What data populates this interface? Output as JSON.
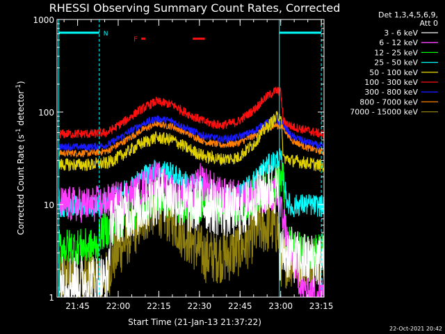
{
  "chart_data": {
    "type": "line",
    "title": "RHESSI Observing Summary Count Rates, Corrected",
    "xlabel": "Start Time (21-Jan-13 21:37:22)",
    "ylabel_parts": [
      "Corrected Count Rate (s",
      "-1",
      " detector",
      "-1",
      ")"
    ],
    "y_scale": "log",
    "ylim": [
      1,
      1000
    ],
    "xlim": [
      37.4,
      136.0
    ],
    "x_units": "minutes after 21:00 UT on 21-Jan-13",
    "x_ticks": [
      {
        "x": 45,
        "label": "21:45"
      },
      {
        "x": 60,
        "label": "22:00"
      },
      {
        "x": 75,
        "label": "22:15"
      },
      {
        "x": 90,
        "label": "22:30"
      },
      {
        "x": 105,
        "label": "22:45"
      },
      {
        "x": 120,
        "label": "23:00"
      },
      {
        "x": 135,
        "label": "23:15"
      }
    ],
    "y_ticks": [
      {
        "y": 1,
        "label": "1"
      },
      {
        "y": 10,
        "label": "10"
      },
      {
        "y": 100,
        "label": "100"
      },
      {
        "y": 1000,
        "label": "1000"
      }
    ],
    "legend_header": [
      "Det 1,3,4,5,6,9,",
      "Att 0"
    ],
    "legend_placement": "right, outside plot",
    "series": [
      {
        "name": "3 - 6 keV",
        "color": "#ffffff",
        "x": [
          38,
          56,
          57.5,
          62,
          68,
          72,
          76,
          80,
          84,
          88,
          90,
          93,
          97,
          101,
          105,
          110,
          114,
          117,
          119,
          119.5,
          123,
          128,
          132,
          136
        ],
        "y": [
          1.5,
          1.5,
          7,
          8,
          9,
          11,
          13,
          12,
          10,
          9,
          11,
          10,
          9,
          8.5,
          8,
          11,
          14,
          15,
          14,
          3,
          3,
          2.5,
          2.5,
          2.5
        ],
        "noise": 0.3
      },
      {
        "name": "6 - 12 keV",
        "color": "#ff40ff",
        "x": [
          38,
          44,
          50,
          56,
          62,
          66,
          70,
          73,
          76,
          80,
          84,
          88,
          90,
          93,
          97,
          101,
          105,
          110,
          114,
          118,
          119.5,
          121,
          123,
          125,
          128,
          132,
          136
        ],
        "y": [
          10,
          10,
          10,
          10.5,
          12,
          13,
          16,
          20,
          17,
          14,
          13,
          14,
          18,
          16,
          13,
          12,
          12,
          12.5,
          12.5,
          13,
          10,
          7,
          3.5,
          2.5,
          1.2,
          1.1,
          1.1
        ],
        "noise": 0.2
      },
      {
        "name": "12 - 25 keV",
        "color": "#00ff00",
        "x": [
          38,
          52,
          53.5,
          57,
          60,
          65,
          70,
          74,
          78,
          82,
          86,
          90,
          94,
          98,
          102,
          106,
          110,
          114,
          118,
          121,
          122,
          125,
          128,
          132,
          136
        ],
        "y": [
          3.5,
          3.5,
          5,
          5.5,
          6.5,
          8,
          10,
          12,
          11,
          10,
          10,
          10,
          10.5,
          9.5,
          9,
          10,
          12,
          14,
          18,
          19,
          4,
          3.2,
          3.2,
          3.2,
          3.2
        ],
        "noise": 0.2
      },
      {
        "name": "25 - 50 keV",
        "color": "#00ffff",
        "x": [
          38,
          48,
          54,
          58,
          62,
          66,
          70,
          74,
          78,
          82,
          86,
          90,
          94,
          98,
          102,
          106,
          110,
          114,
          118,
          120,
          121,
          122,
          124,
          126,
          130,
          136
        ],
        "y": [
          9.5,
          9.5,
          10,
          12,
          14,
          17,
          21,
          24,
          23,
          20,
          17,
          16,
          14,
          12,
          12,
          14,
          18,
          25,
          30,
          32,
          20,
          12,
          9,
          10,
          10,
          9.5
        ],
        "noise": 0.12
      },
      {
        "name": "50 - 100 keV",
        "color": "#e0d000",
        "x": [
          38,
          50,
          56,
          62,
          68,
          74,
          80,
          86,
          92,
          98,
          104,
          110,
          114,
          118,
          120,
          121,
          124,
          130,
          136
        ],
        "y": [
          27,
          27,
          28,
          35,
          45,
          53,
          50,
          40,
          33,
          31,
          32,
          45,
          65,
          85,
          95,
          32,
          30,
          28,
          26
        ],
        "noise": 0.07
      },
      {
        "name": "100 - 300 keV",
        "color": "#ff1010",
        "x": [
          38,
          50,
          56,
          62,
          68,
          74,
          80,
          86,
          92,
          98,
          104,
          110,
          114,
          118,
          120,
          121,
          124,
          130,
          136
        ],
        "y": [
          58,
          58,
          60,
          78,
          105,
          130,
          120,
          95,
          78,
          72,
          78,
          105,
          140,
          170,
          165,
          80,
          70,
          63,
          57
        ],
        "noise": 0.05
      },
      {
        "name": "300 - 800 keV",
        "color": "#1a1aff",
        "x": [
          38,
          50,
          56,
          62,
          68,
          74,
          80,
          86,
          92,
          98,
          104,
          110,
          114,
          118,
          120,
          121,
          124,
          130,
          136
        ],
        "y": [
          42,
          42,
          44,
          56,
          72,
          85,
          80,
          65,
          55,
          51,
          53,
          62,
          75,
          80,
          78,
          75,
          55,
          47,
          42
        ],
        "noise": 0.04
      },
      {
        "name": "800 - 7000 keV",
        "color": "#ff8000",
        "x": [
          38,
          50,
          56,
          62,
          68,
          74,
          80,
          86,
          92,
          98,
          104,
          110,
          114,
          118,
          120,
          121,
          124,
          130,
          136
        ],
        "y": [
          36,
          36,
          38,
          48,
          62,
          75,
          70,
          58,
          48,
          44,
          46,
          55,
          66,
          72,
          70,
          68,
          50,
          41,
          37
        ],
        "noise": 0.04
      },
      {
        "name": "7000 - 15000 keV",
        "color": "#908010",
        "x": [
          38,
          52,
          56,
          57.5,
          60,
          64,
          68,
          72,
          76,
          80,
          84,
          88,
          92,
          96,
          100,
          104,
          108,
          112,
          116,
          119,
          120,
          124,
          128,
          132,
          136
        ],
        "y": [
          1.6,
          1.6,
          1.6,
          2.5,
          3.2,
          4.5,
          6.5,
          9,
          8.5,
          7,
          5,
          3.8,
          2.8,
          2.8,
          2.8,
          3.2,
          4,
          5.5,
          5.8,
          5.5,
          2.5,
          2.5,
          2.5,
          2.5,
          2.5
        ],
        "noise": 0.3
      }
    ],
    "annotations": {
      "saa_marks": [
        {
          "x_start": 38,
          "x_end": 53,
          "label": "N"
        },
        {
          "x_start": 119.5,
          "x_end": 135,
          "label": ""
        }
      ],
      "flare_label": "F",
      "flare_intervals": [
        [
          68.5,
          70
        ],
        [
          87.5,
          92
        ]
      ],
      "colors": {
        "saa": "#00ffff",
        "flare": "#ff1010"
      }
    },
    "grid": false
  },
  "footer": {
    "timestamp": "22-Oct-2021 20:42"
  }
}
